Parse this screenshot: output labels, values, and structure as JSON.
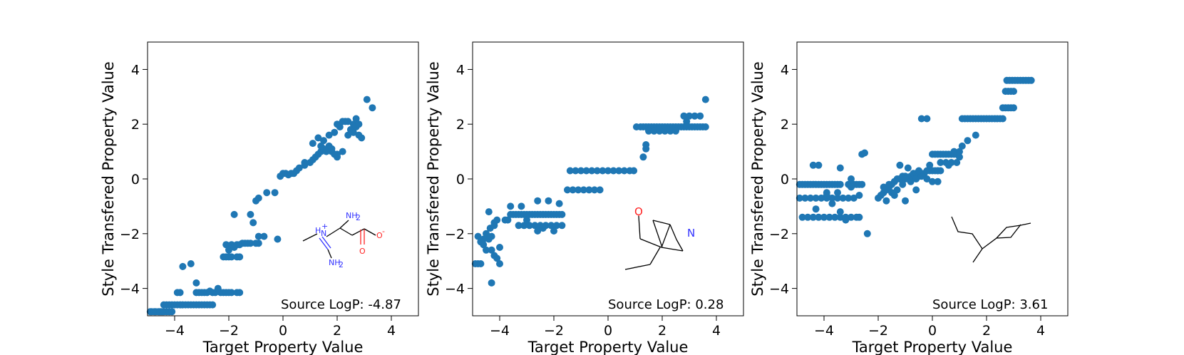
{
  "colors": {
    "marker": "#1f77b4",
    "axis": "#000000",
    "nitrogen": "#3333ff",
    "oxygen": "#ff2222",
    "bond": "#000000"
  },
  "chart_data": [
    {
      "type": "scatter",
      "title": "",
      "xlabel": "Target Property Value",
      "ylabel": "Style Transfered Property Value",
      "xlim": [
        -5,
        5
      ],
      "ylim": [
        -5,
        5
      ],
      "xticks": [
        -4,
        -2,
        0,
        2,
        4
      ],
      "yticks": [
        -4,
        -2,
        0,
        2,
        4
      ],
      "tick_labels": [
        "−4",
        "−2",
        "0",
        "2",
        "4"
      ],
      "annotation": "Source LogP: -4.87",
      "molecule": {
        "atom_labels": [
          "H",
          "N",
          "+",
          "NH",
          "2",
          "NH",
          "2",
          "O",
          "-",
          "O"
        ],
        "icon": "molecule-amidino-glycinate-icon"
      },
      "x": [
        -4.9,
        -4.85,
        -4.75,
        -4.7,
        -4.6,
        -4.55,
        -4.5,
        -4.45,
        -4.4,
        -4.3,
        -4.2,
        -4.1,
        -4.4,
        -4.3,
        -4.2,
        -4.1,
        -4.0,
        -3.9,
        -3.8,
        -3.7,
        -3.6,
        -3.5,
        -3.4,
        -3.3,
        -3.2,
        -3.1,
        -3.0,
        -2.9,
        -2.8,
        -2.7,
        -2.6,
        -3.9,
        -3.8,
        -3.2,
        -3.1,
        -3.0,
        -2.9,
        -2.8,
        -2.6,
        -2.5,
        -2.3,
        -2.2,
        -2.1,
        -2.0,
        -1.9,
        -1.7,
        -1.6,
        -3.7,
        -3.4,
        -3.2,
        -2.7,
        -2.4,
        -2.2,
        -2.1,
        -2.0,
        -1.9,
        -1.7,
        -1.6,
        -2.1,
        -1.9,
        -1.7,
        -1.6,
        -2.0,
        -1.8,
        -1.5,
        -1.4,
        -1.3,
        -1.2,
        -1.0,
        -0.9,
        -1.1,
        -0.9,
        -0.7,
        -0.2,
        -1.8,
        -1.2,
        -1.0,
        -0.9,
        -0.6,
        -0.3,
        -0.1,
        0.0,
        0.1,
        0.2,
        0.3,
        0.4,
        0.5,
        0.6,
        0.8,
        0.8,
        1.0,
        1.1,
        1.2,
        1.3,
        1.4,
        1.5,
        1.7,
        1.8,
        1.9,
        2.0,
        1.1,
        1.3,
        1.5,
        1.7,
        1.9,
        2.1,
        2.3,
        2.5,
        2.6,
        2.8,
        2.9,
        2.0,
        2.2,
        2.4,
        2.6,
        2.7,
        1.4,
        1.6,
        1.8,
        2.0,
        2.2,
        2.4,
        2.5,
        2.7,
        2.8,
        3.1,
        3.3
      ],
      "y": [
        -4.85,
        -4.85,
        -4.85,
        -4.85,
        -4.85,
        -4.85,
        -4.85,
        -4.85,
        -4.85,
        -4.85,
        -4.85,
        -4.85,
        -4.6,
        -4.6,
        -4.6,
        -4.6,
        -4.6,
        -4.6,
        -4.6,
        -4.6,
        -4.6,
        -4.6,
        -4.6,
        -4.6,
        -4.6,
        -4.6,
        -4.6,
        -4.6,
        -4.6,
        -4.6,
        -4.6,
        -4.15,
        -4.15,
        -4.15,
        -4.15,
        -4.15,
        -4.15,
        -4.15,
        -4.15,
        -4.15,
        -4.15,
        -4.15,
        -4.15,
        -4.15,
        -4.15,
        -4.15,
        -4.15,
        -3.2,
        -3.1,
        -3.8,
        -4.1,
        -4.0,
        -2.85,
        -2.85,
        -2.85,
        -2.85,
        -2.85,
        -2.85,
        -2.4,
        -2.4,
        -2.4,
        -2.4,
        -2.6,
        -2.5,
        -2.35,
        -2.35,
        -2.35,
        -2.35,
        -2.35,
        -2.35,
        -1.6,
        -2.1,
        -2.1,
        -2.2,
        -1.3,
        -1.3,
        -0.8,
        -0.7,
        -0.5,
        -0.5,
        0.1,
        0.2,
        0.2,
        0.15,
        0.2,
        0.2,
        0.3,
        0.4,
        0.6,
        0.5,
        0.6,
        0.7,
        0.8,
        0.9,
        1.0,
        1.1,
        1.2,
        1.0,
        0.9,
        0.8,
        1.3,
        1.5,
        1.4,
        1.6,
        1.7,
        1.9,
        2.1,
        1.8,
        1.7,
        1.6,
        1.5,
        2.0,
        2.1,
        2.1,
        2.0,
        2.2,
        1.2,
        1.0,
        1.1,
        0.9,
        1.0,
        1.6,
        1.8,
        1.9,
        2.0,
        2.9,
        2.6
      ]
    },
    {
      "type": "scatter",
      "title": "",
      "xlabel": "Target Property Value",
      "ylabel": "Style Transfered Property Value",
      "xlim": [
        -5,
        5
      ],
      "ylim": [
        -5,
        5
      ],
      "xticks": [
        -4,
        -2,
        0,
        2,
        4
      ],
      "yticks": [
        -4,
        -2,
        0,
        2,
        4
      ],
      "tick_labels": [
        "−4",
        "−2",
        "0",
        "2",
        "4"
      ],
      "annotation": "Source LogP: 0.28",
      "molecule": {
        "atom_labels": [
          "O",
          "N"
        ],
        "icon": "molecule-azabicyclo-aldehyde-icon"
      },
      "x": [
        -4.9,
        -4.8,
        -4.7,
        -4.6,
        -4.5,
        -4.4,
        -4.3,
        -4.2,
        -4.1,
        -4.0,
        -4.4,
        -4.2,
        -4.5,
        -4.3,
        -4.35,
        -4.1,
        -4.2,
        -4.3,
        -4.8,
        -4.6,
        -4.7,
        -4.0,
        -3.8,
        -3.7,
        -3.6,
        -3.5,
        -3.4,
        -3.3,
        -3.2,
        -3.1,
        -3.0,
        -2.9,
        -2.8,
        -2.7,
        -2.6,
        -2.5,
        -2.4,
        -2.3,
        -2.2,
        -2.1,
        -2.0,
        -1.9,
        -1.8,
        -1.7,
        -3.3,
        -3.1,
        -2.9,
        -2.7,
        -2.5,
        -2.3,
        -2.1,
        -1.9,
        -1.7,
        -3.6,
        -3.2,
        -3.0,
        -2.6,
        -2.4,
        -2.0,
        -1.8,
        -2.2,
        -2.6,
        -1.5,
        -1.3,
        -1.1,
        -0.9,
        -0.7,
        -0.5,
        -0.3,
        -1.4,
        -1.2,
        -1.0,
        -0.8,
        -0.6,
        -0.4,
        -0.2,
        0.0,
        0.2,
        0.4,
        0.6,
        0.8,
        0.95,
        1.05,
        1.2,
        1.3,
        1.4,
        1.5,
        1.6,
        1.7,
        1.8,
        1.9,
        2.0,
        2.1,
        2.2,
        2.3,
        2.4,
        2.5,
        2.6,
        2.7,
        2.8,
        2.9,
        3.0,
        3.1,
        3.2,
        3.3,
        3.4,
        3.5,
        3.6,
        1.5,
        1.7,
        1.9,
        2.1,
        2.3,
        2.5,
        1.3,
        1.4,
        1.4,
        2.8,
        3.0,
        3.2,
        3.4,
        2.9,
        3.6
      ],
      "y": [
        -3.1,
        -3.1,
        -3.1,
        -2.4,
        -2.0,
        -2.2,
        -2.6,
        -2.8,
        -2.9,
        -3.1,
        -1.2,
        -1.6,
        -2.6,
        -3.8,
        -1.8,
        -1.5,
        -1.7,
        -2.1,
        -2.1,
        -2.2,
        -2.3,
        -2.5,
        -1.5,
        -1.5,
        -1.3,
        -1.3,
        -1.3,
        -1.3,
        -1.3,
        -1.3,
        -1.3,
        -1.3,
        -1.3,
        -1.3,
        -1.3,
        -1.3,
        -1.3,
        -1.3,
        -1.3,
        -1.3,
        -1.3,
        -1.3,
        -1.3,
        -1.3,
        -1.7,
        -1.7,
        -1.7,
        -1.7,
        -1.7,
        -1.7,
        -1.7,
        -1.7,
        -1.7,
        -1.0,
        -1.0,
        -1.5,
        -1.9,
        -1.8,
        -1.9,
        -0.9,
        -0.8,
        -0.8,
        -0.4,
        -0.4,
        -0.4,
        -0.4,
        -0.4,
        -0.4,
        -0.4,
        0.3,
        0.3,
        0.3,
        0.3,
        0.3,
        0.3,
        0.3,
        0.3,
        0.3,
        0.3,
        0.3,
        0.3,
        0.3,
        1.9,
        1.9,
        1.9,
        1.9,
        1.9,
        1.9,
        1.9,
        1.9,
        1.9,
        1.9,
        1.9,
        1.9,
        1.9,
        1.9,
        1.9,
        1.9,
        1.9,
        1.9,
        1.9,
        1.9,
        1.9,
        1.9,
        1.9,
        1.9,
        1.9,
        1.9,
        1.75,
        1.75,
        1.75,
        1.75,
        1.75,
        1.75,
        0.8,
        1.1,
        1.25,
        2.3,
        2.3,
        2.3,
        2.3,
        2.1,
        2.9
      ]
    },
    {
      "type": "scatter",
      "title": "",
      "xlabel": "Target Property Value",
      "ylabel": "Style Transfered Property Value",
      "xlim": [
        -5,
        5
      ],
      "ylim": [
        -5,
        5
      ],
      "xticks": [
        -4,
        -2,
        0,
        2,
        4
      ],
      "yticks": [
        -4,
        -2,
        0,
        2,
        4
      ],
      "tick_labels": [
        "−4",
        "−2",
        "0",
        "2",
        "4"
      ],
      "annotation": "Source LogP: 3.61",
      "molecule": {
        "atom_labels": [],
        "icon": "molecule-branched-alkane-icon"
      },
      "x": [
        -4.9,
        -4.8,
        -4.7,
        -4.6,
        -4.5,
        -4.4,
        -4.3,
        -4.2,
        -4.1,
        -4.0,
        -3.9,
        -3.8,
        -3.7,
        -3.6,
        -3.5,
        -3.4,
        -3.1,
        -3.0,
        -2.9,
        -2.8,
        -2.7,
        -2.6,
        -4.9,
        -4.7,
        -4.5,
        -4.3,
        -4.1,
        -3.9,
        -3.7,
        -3.5,
        -3.3,
        -3.1,
        -2.9,
        -4.8,
        -4.6,
        -4.4,
        -4.2,
        -4.0,
        -3.8,
        -3.6,
        -3.4,
        -3.2,
        -3.0,
        -2.8,
        -2.7,
        -4.4,
        -4.2,
        -3.9,
        -3.7,
        -3.4,
        -3.2,
        -3.0,
        -2.6,
        -2.5,
        -4.3,
        -3.9,
        -3.5,
        -3.0,
        -2.7,
        -3.4,
        -2.4,
        -2.0,
        -1.9,
        -1.8,
        -1.7,
        -1.6,
        -1.5,
        -1.4,
        -1.3,
        -1.2,
        -1.1,
        -1.0,
        -0.9,
        -0.8,
        -0.7,
        -0.6,
        -0.5,
        -0.4,
        -0.3,
        -0.2,
        -0.1,
        0.0,
        0.1,
        0.2,
        0.3,
        -1.8,
        -1.6,
        -1.4,
        -1.2,
        -1.0,
        -0.8,
        -0.6,
        -0.4,
        -0.2,
        0.0,
        0.2,
        -1.9,
        -1.7,
        -1.5,
        -1.3,
        -1.1,
        -0.9,
        -0.5,
        -0.1,
        -1.4,
        -1.0,
        -0.6,
        -0.2,
        -1.2,
        -0.4,
        0.0,
        0.1,
        0.2,
        0.3,
        0.4,
        0.5,
        0.6,
        0.7,
        0.8,
        0.9,
        0.3,
        0.5,
        0.7,
        0.9,
        0.2,
        0.6,
        1.0,
        0.8,
        1.0,
        1.1,
        1.2,
        1.3,
        1.4,
        1.5,
        1.6,
        1.7,
        1.8,
        1.9,
        2.0,
        2.1,
        2.2,
        2.3,
        2.4,
        2.5,
        2.6,
        1.1,
        1.3,
        1.6,
        2.6,
        2.7,
        2.8,
        2.9,
        3.0,
        2.7,
        2.8,
        2.9,
        3.0,
        2.75,
        2.85,
        2.95,
        3.05,
        3.15,
        3.25,
        3.35,
        3.45,
        3.55,
        3.65
      ],
      "y": [
        -0.2,
        -0.2,
        -0.2,
        -0.2,
        -0.2,
        -0.2,
        -0.2,
        -0.2,
        -0.2,
        -0.2,
        -0.2,
        -0.2,
        -0.2,
        -0.2,
        -0.2,
        -0.2,
        -0.2,
        -0.2,
        -0.2,
        -0.2,
        -0.2,
        -0.2,
        -0.7,
        -0.7,
        -0.7,
        -0.7,
        -0.7,
        -0.7,
        -0.7,
        -0.7,
        -0.7,
        -0.7,
        -0.7,
        -1.4,
        -1.4,
        -1.4,
        -1.4,
        -1.4,
        -1.4,
        -1.4,
        -1.4,
        -1.4,
        -1.4,
        -1.4,
        -1.4,
        0.5,
        0.5,
        -0.5,
        -0.9,
        -1.2,
        -1.5,
        0.0,
        0.9,
        0.95,
        -1.1,
        -0.6,
        -0.5,
        -0.3,
        -0.6,
        0.4,
        -2.0,
        -0.7,
        -0.6,
        -0.5,
        -0.4,
        -0.3,
        -0.2,
        -0.1,
        0.0,
        0.0,
        0.1,
        0.1,
        0.0,
        0.1,
        0.2,
        0.2,
        0.1,
        0.2,
        0.2,
        0.3,
        0.3,
        0.3,
        0.3,
        0.3,
        0.3,
        -0.3,
        -0.2,
        -0.1,
        0.0,
        0.0,
        -0.1,
        0.0,
        0.1,
        0.0,
        -0.1,
        -0.1,
        -0.6,
        -0.8,
        -0.5,
        -0.4,
        -0.2,
        0.4,
        0.3,
        0.5,
        -0.6,
        -0.8,
        -0.4,
        2.2,
        0.5,
        2.2,
        0.9,
        0.9,
        0.9,
        0.9,
        0.9,
        0.9,
        0.9,
        0.9,
        0.9,
        0.9,
        0.6,
        0.6,
        0.6,
        0.6,
        0.3,
        0.5,
        0.8,
        1.0,
        1.0,
        2.2,
        2.2,
        2.2,
        2.2,
        2.2,
        2.2,
        2.2,
        2.2,
        2.2,
        2.2,
        2.2,
        2.2,
        2.2,
        2.2,
        2.2,
        2.2,
        1.2,
        1.4,
        1.6,
        2.6,
        2.6,
        2.6,
        2.6,
        2.6,
        3.2,
        3.2,
        3.2,
        3.2,
        3.6,
        3.6,
        3.6,
        3.6,
        3.6,
        3.6,
        3.6,
        3.6,
        3.6,
        3.6
      ]
    }
  ]
}
